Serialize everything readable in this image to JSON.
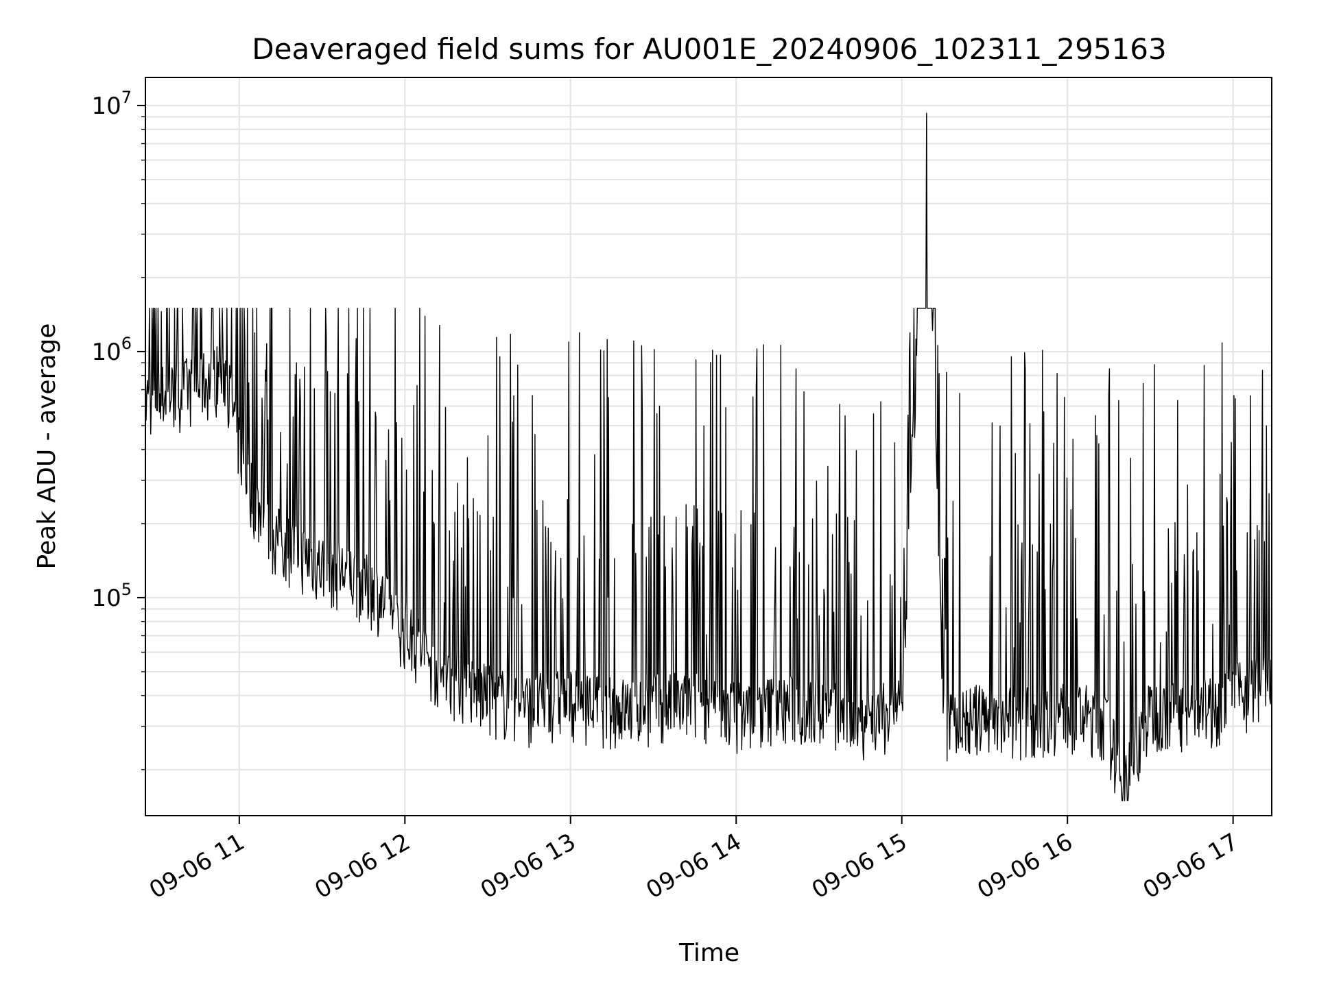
{
  "chart_data": {
    "type": "line",
    "title": "Deaveraged field sums for AU001E_20240906_102311_295163",
    "xlabel": "Time",
    "ylabel": "Peak ADU - average",
    "yscale": "log",
    "ylim": [
      13000,
      13000000
    ],
    "xlim": [
      "2024-09-06 10:26",
      "2024-09-06 17:14"
    ],
    "grid": true,
    "x_ticks": [
      "09-06 11",
      "09-06 12",
      "09-06 13",
      "09-06 14",
      "09-06 15",
      "09-06 16",
      "09-06 17"
    ],
    "y_ticks": [
      {
        "base": "10",
        "exp": "5",
        "value": 100000
      },
      {
        "base": "10",
        "exp": "6",
        "value": 1000000
      },
      {
        "base": "10",
        "exp": "7",
        "value": 10000000
      }
    ],
    "series": [
      {
        "color": "#000000",
        "x": [
          "2024-09-06 10:26",
          "2024-09-06 10:35",
          "2024-09-06 10:45",
          "2024-09-06 10:55",
          "2024-09-06 11:00",
          "2024-09-06 11:05",
          "2024-09-06 11:10",
          "2024-09-06 11:20",
          "2024-09-06 11:30",
          "2024-09-06 11:40",
          "2024-09-06 11:50",
          "2024-09-06 12:00",
          "2024-09-06 12:15",
          "2024-09-06 12:30",
          "2024-09-06 12:45",
          "2024-09-06 13:00",
          "2024-09-06 13:15",
          "2024-09-06 13:30",
          "2024-09-06 13:45",
          "2024-09-06 14:00",
          "2024-09-06 14:15",
          "2024-09-06 14:30",
          "2024-09-06 14:45",
          "2024-09-06 15:00",
          "2024-09-06 15:09",
          "2024-09-06 15:15",
          "2024-09-06 15:30",
          "2024-09-06 15:45",
          "2024-09-06 16:00",
          "2024-09-06 16:14",
          "2024-09-06 16:20",
          "2024-09-06 16:30",
          "2024-09-06 16:45",
          "2024-09-06 17:00",
          "2024-09-06 17:14"
        ],
        "y": [
          620000,
          650000,
          700000,
          800000,
          400000,
          250000,
          180000,
          150000,
          130000,
          120000,
          100000,
          70000,
          45000,
          38000,
          35000,
          37000,
          34000,
          35000,
          36000,
          33000,
          35000,
          34000,
          31000,
          33000,
          9300000,
          30000,
          32000,
          31000,
          33000,
          30000,
          17000,
          33000,
          32000,
          38000,
          45000
        ]
      }
    ]
  }
}
